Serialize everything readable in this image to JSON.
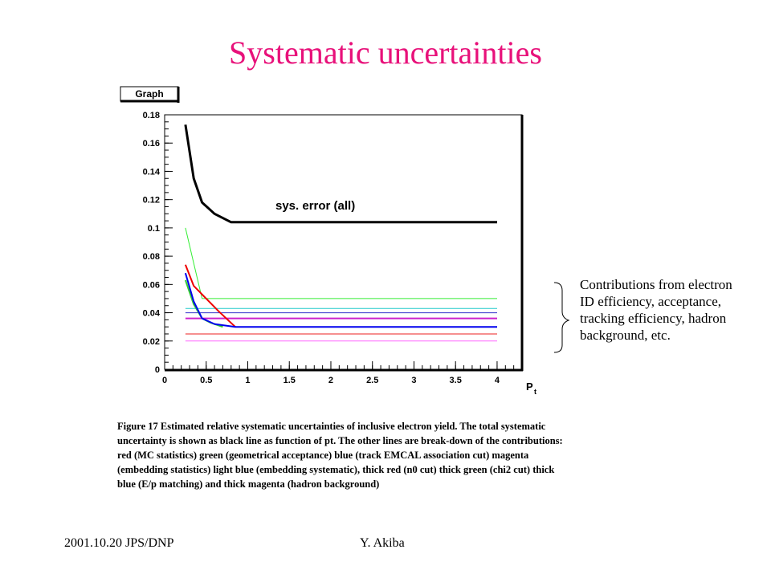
{
  "slide": {
    "title": "Systematic uncertainties",
    "caption": "Figure 17 Estimated relative systematic uncertainties of inclusive electron yield. The total systematic uncertainty is shown as black line as function of pt. The other lines are break-down of the contributions: red (MC statistics) green (geometrical acceptance) blue (track EMCAL association cut) magenta (embedding statistics) light blue (embedding systematic), thick red (n0 cut) thick green (chi2 cut) thick blue (E/p matching) and thick magenta (hadron background)",
    "side_note": "Contributions from electron ID efficiency, acceptance, tracking efficiency, hadron background, etc.",
    "footer_left": "2001.10.20 JPS/DNP",
    "footer_right": "Y. Akiba"
  },
  "chart_data": {
    "type": "line",
    "panel_label": "Graph",
    "xlabel": "P",
    "xlabel_sub": "t",
    "xlim": [
      0,
      4.3
    ],
    "ylim": [
      0,
      0.18
    ],
    "x_ticks": [
      "0",
      "0.5",
      "1",
      "1.5",
      "2",
      "2.5",
      "3",
      "3.5",
      "4"
    ],
    "y_ticks": [
      "0",
      "0.02",
      "0.04",
      "0.06",
      "0.08",
      "0.1",
      "0.12",
      "0.14",
      "0.16",
      "0.18"
    ],
    "annotation": "sys. error (all)",
    "series": [
      {
        "color": "#000000",
        "width": 3,
        "points": [
          [
            0.25,
            0.173
          ],
          [
            0.35,
            0.135
          ],
          [
            0.45,
            0.118
          ],
          [
            0.6,
            0.11
          ],
          [
            0.8,
            0.104
          ],
          [
            0.9,
            0.104
          ],
          [
            4.0,
            0.104
          ]
        ]
      },
      {
        "color": "#33ee33",
        "width": 1,
        "points": [
          [
            0.25,
            0.1
          ],
          [
            0.35,
            0.075
          ],
          [
            0.45,
            0.05
          ],
          [
            4.0,
            0.05
          ]
        ]
      },
      {
        "color": "#22cccc",
        "width": 1,
        "points": [
          [
            0.25,
            0.043
          ],
          [
            4.0,
            0.043
          ]
        ]
      },
      {
        "color": "#3333cc",
        "width": 1,
        "points": [
          [
            0.25,
            0.04
          ],
          [
            4.0,
            0.04
          ]
        ]
      },
      {
        "color": "#cc22cc",
        "width": 2,
        "points": [
          [
            0.25,
            0.036
          ],
          [
            4.0,
            0.036
          ]
        ]
      },
      {
        "color": "#ee2222",
        "width": 1,
        "points": [
          [
            0.25,
            0.025
          ],
          [
            4.0,
            0.025
          ]
        ]
      },
      {
        "color": "#ff66ff",
        "width": 1,
        "points": [
          [
            0.25,
            0.02
          ],
          [
            4.0,
            0.02
          ]
        ]
      },
      {
        "color": "#ee0000",
        "width": 2,
        "points": [
          [
            0.25,
            0.074
          ],
          [
            0.35,
            0.059
          ],
          [
            0.5,
            0.05
          ],
          [
            0.65,
            0.041
          ],
          [
            0.85,
            0.03
          ]
        ]
      },
      {
        "color": "#33cc33",
        "width": 2,
        "points": [
          [
            0.25,
            0.063
          ],
          [
            0.35,
            0.046
          ],
          [
            0.45,
            0.036
          ],
          [
            0.55,
            0.033
          ],
          [
            0.7,
            0.03
          ]
        ]
      },
      {
        "color": "#0000ee",
        "width": 2,
        "points": [
          [
            0.25,
            0.068
          ],
          [
            0.35,
            0.048
          ],
          [
            0.45,
            0.036
          ],
          [
            0.6,
            0.032
          ],
          [
            0.85,
            0.03
          ],
          [
            4.0,
            0.03
          ]
        ]
      }
    ]
  }
}
